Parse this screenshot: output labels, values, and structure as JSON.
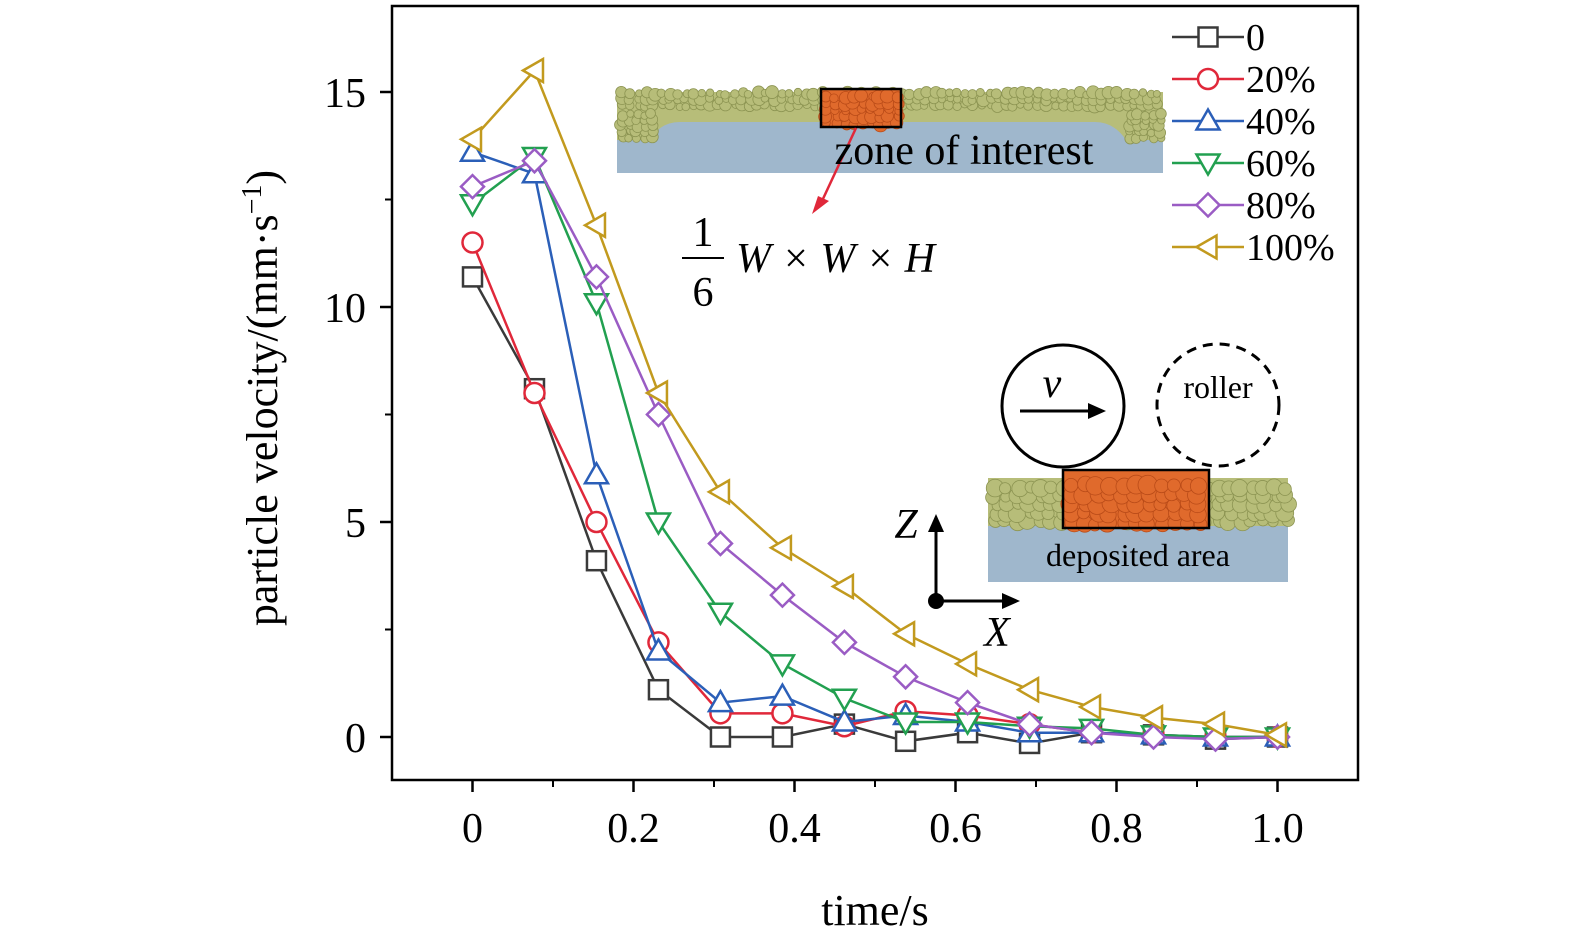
{
  "chart_data": {
    "type": "line",
    "xlabel": "time/s",
    "ylabel": "particle velocity/(mm·s",
    "ylabel_sup": "−1",
    "ylabel_close": ")",
    "xlim": [
      -0.1,
      1.1
    ],
    "ylim": [
      -1,
      17
    ],
    "xticks": [
      0,
      0.2,
      0.4,
      0.6,
      0.8,
      1.0
    ],
    "xtick_labels": [
      "0",
      "0.2",
      "0.4",
      "0.6",
      "0.8",
      "1.0"
    ],
    "yticks": [
      0,
      5,
      10,
      15
    ],
    "ytick_labels": [
      "0",
      "5",
      "10",
      "15"
    ],
    "grid": false,
    "legend_position": "top-right",
    "x": [
      0,
      0.077,
      0.154,
      0.231,
      0.308,
      0.385,
      0.462,
      0.538,
      0.615,
      0.692,
      0.769,
      0.846,
      0.923,
      1.0
    ],
    "series": [
      {
        "name": "0",
        "color": "#3a3a3a",
        "marker": "square",
        "values": [
          10.7,
          8.1,
          4.1,
          1.1,
          0.0,
          0.0,
          0.3,
          -0.1,
          0.1,
          -0.15,
          0.1,
          0.05,
          -0.05,
          0.0
        ]
      },
      {
        "name": "20%",
        "color": "#e0283a",
        "marker": "circle",
        "values": [
          11.5,
          8.0,
          5.0,
          2.2,
          0.55,
          0.55,
          0.25,
          0.6,
          0.5,
          0.3,
          0.1,
          0.05,
          0.0,
          0.0
        ]
      },
      {
        "name": "40%",
        "color": "#2b5fb8",
        "marker": "triangle-up",
        "values": [
          13.6,
          13.1,
          6.1,
          2.0,
          0.8,
          0.95,
          0.35,
          0.5,
          0.35,
          0.1,
          0.1,
          0.05,
          0.0,
          0.0
        ]
      },
      {
        "name": "60%",
        "color": "#22a050",
        "marker": "triangle-down",
        "values": [
          12.4,
          13.5,
          10.1,
          5.0,
          2.9,
          1.7,
          0.9,
          0.35,
          0.35,
          0.25,
          0.2,
          0.05,
          0.0,
          0.0
        ]
      },
      {
        "name": "80%",
        "color": "#9a5cc4",
        "marker": "diamond",
        "values": [
          12.8,
          13.4,
          10.7,
          7.5,
          4.5,
          3.3,
          2.2,
          1.4,
          0.8,
          0.3,
          0.1,
          0.0,
          -0.05,
          0.0
        ]
      },
      {
        "name": "100%",
        "color": "#c29a1e",
        "marker": "triangle-left",
        "values": [
          13.9,
          15.5,
          11.9,
          8.0,
          5.7,
          4.4,
          3.5,
          2.4,
          1.7,
          1.1,
          0.7,
          0.45,
          0.3,
          0.05
        ]
      }
    ],
    "annotations": {
      "zone_label": "zone of interest",
      "fraction_num": "1",
      "fraction_den": "6",
      "formula": "W × W × H",
      "velocity_symbol": "v",
      "roller_label": "roller",
      "deposited_label": "deposited area",
      "axis_z": "Z",
      "axis_x": "X"
    },
    "colors": {
      "powder": "#b7bd79",
      "powder_dark": "#8c9452",
      "substrate": "#9fb7cc",
      "zone": "#e06a2c",
      "zone_dark": "#b94b18",
      "arrow_red": "#e0283a"
    }
  }
}
